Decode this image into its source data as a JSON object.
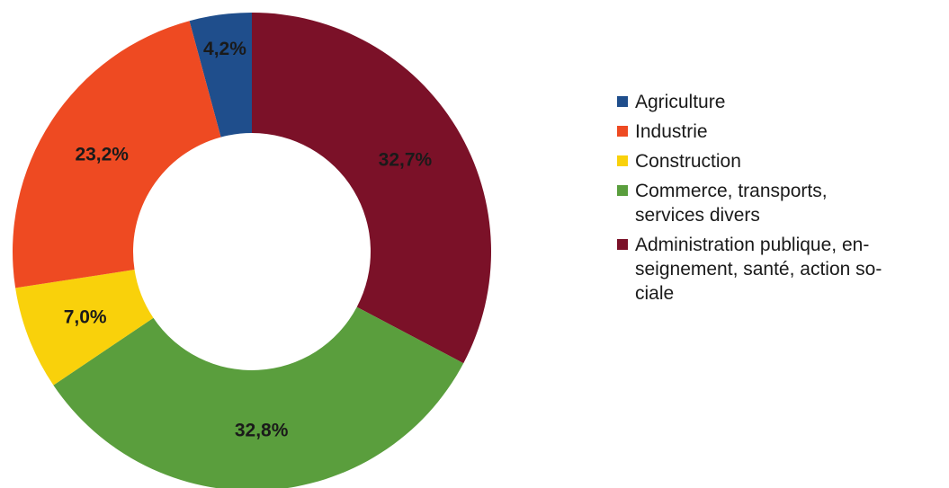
{
  "chart_data": {
    "type": "pie",
    "donut": true,
    "title": "",
    "legend_position": "right",
    "slices": [
      {
        "label": "Agriculture",
        "value": 4.2,
        "display": "4,2%",
        "color": "#1f4e8c"
      },
      {
        "label": "Administration publique, en-\nseignement, santé, action so-\nciale",
        "value": 32.7,
        "display": "32,7%",
        "color": "#7b1128"
      },
      {
        "label": "Commerce, transports,\nservices divers",
        "value": 32.8,
        "display": "32,8%",
        "color": "#5a9e3d"
      },
      {
        "label": "Construction",
        "value": 7.0,
        "display": "7,0%",
        "color": "#f9d10b"
      },
      {
        "label": "Industrie",
        "value": 23.2,
        "display": "23,2%",
        "color": "#ee4a22"
      }
    ],
    "legend": [
      {
        "text": "Agriculture",
        "color": "#1f4e8c"
      },
      {
        "text": "Industrie",
        "color": "#ee4a22"
      },
      {
        "text": "Construction",
        "color": "#f9d10b"
      },
      {
        "text": "Commerce, transports,\nservices divers",
        "color": "#5a9e3d"
      },
      {
        "text": "Administration publique, en-\nseignement, santé, action so-\nciale",
        "color": "#7b1128"
      }
    ]
  }
}
